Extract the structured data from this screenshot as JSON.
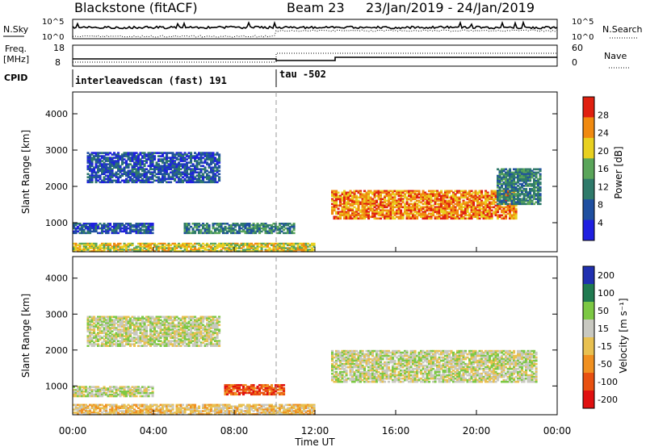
{
  "header": {
    "station": "Blackstone (fitACF)",
    "beam": "Beam 23",
    "date_range": "23/Jan/2019 - 24/Jan/2019"
  },
  "top_panels": {
    "nsky_label": "N.Sky",
    "nsky_ticks": [
      "10^5",
      "10^0"
    ],
    "nsearch_label": "N.Search",
    "freq_label_1": "Freq.",
    "freq_label_2": "[MHz]",
    "freq_ticks": [
      "18",
      "8"
    ],
    "nave_label": "Nave",
    "nave_ticks": [
      "60",
      "0"
    ],
    "cpid_label": "CPID",
    "cpid_1": "interleavedscan (fast) 191",
    "cpid_2": "tau -502"
  },
  "chart_data": [
    {
      "type": "heatmap",
      "name": "power",
      "ylabel": "Slant Range [km]",
      "yticks": [
        "1000",
        "2000",
        "3000",
        "4000"
      ],
      "ylim": [
        200,
        4600
      ],
      "xlim_hours": [
        0,
        24
      ],
      "colorbar_label": "Power [dB]",
      "colorbar_ticks": [
        "4",
        "8",
        "12",
        "16",
        "20",
        "24",
        "28"
      ],
      "colorscale": [
        "#1f1fe0",
        "#1f4fa0",
        "#2f7a6a",
        "#5aa55a",
        "#e8d020",
        "#f08a10",
        "#e02010"
      ],
      "regions": [
        {
          "t0": 0.7,
          "t1": 7.3,
          "r0": 2100,
          "r1": 2950,
          "level": 1
        },
        {
          "t0": 0.0,
          "t1": 4.0,
          "r0": 700,
          "r1": 1000,
          "level": 1
        },
        {
          "t0": 5.5,
          "t1": 11.0,
          "r0": 700,
          "r1": 1000,
          "level": 2
        },
        {
          "t0": 0.0,
          "t1": 12.0,
          "r0": 200,
          "r1": 450,
          "level": 4
        },
        {
          "t0": 12.8,
          "t1": 22.0,
          "r0": 1100,
          "r1": 1900,
          "level": 5
        },
        {
          "t0": 21.0,
          "t1": 23.2,
          "r0": 1500,
          "r1": 2500,
          "level": 2
        }
      ]
    },
    {
      "type": "heatmap",
      "name": "velocity",
      "ylabel": "Slant Range [km]",
      "xlabel": "Time UT",
      "yticks": [
        "1000",
        "2000",
        "3000",
        "4000"
      ],
      "xticks": [
        "00:00",
        "04:00",
        "08:00",
        "12:00",
        "16:00",
        "20:00",
        "00:00"
      ],
      "ylim": [
        200,
        4600
      ],
      "xlim_hours": [
        0,
        24
      ],
      "colorbar_label": "Velocity [m s⁻¹]",
      "colorbar_ticks": [
        "200",
        "100",
        "50",
        "15",
        "-15",
        "-50",
        "-100",
        "-200"
      ],
      "colorscale": [
        "#2030b0",
        "#207a50",
        "#7cc844",
        "#c8c8c0",
        "#e8c050",
        "#f09020",
        "#e85010",
        "#e01010"
      ],
      "regions": [
        {
          "t0": 0.7,
          "t1": 7.3,
          "r0": 2100,
          "r1": 2950,
          "level": 3
        },
        {
          "t0": 0.0,
          "t1": 4.0,
          "r0": 700,
          "r1": 1000,
          "level": 3
        },
        {
          "t0": 7.5,
          "t1": 10.5,
          "r0": 750,
          "r1": 1050,
          "level": 6
        },
        {
          "t0": 0.0,
          "t1": 12.0,
          "r0": 200,
          "r1": 500,
          "level": 4
        },
        {
          "t0": 12.8,
          "t1": 23.0,
          "r0": 1100,
          "r1": 2000,
          "level": 3
        }
      ]
    }
  ]
}
